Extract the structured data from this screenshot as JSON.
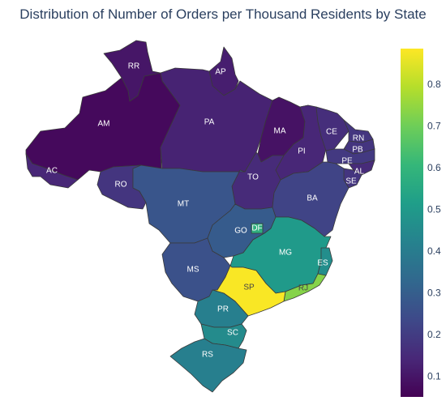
{
  "title": "Distribution of Number of Orders per Thousand Residents by State",
  "chart_data": {
    "type": "choropleth",
    "colorscale": "Viridis",
    "color_range": [
      0.05,
      0.885
    ],
    "colorbar_ticks": [
      "0.1",
      "0.2",
      "0.3",
      "0.4",
      "0.5",
      "0.6",
      "0.7",
      "0.8"
    ],
    "colorbar_tick_values": [
      0.1,
      0.2,
      0.3,
      0.4,
      0.5,
      0.6,
      0.7,
      0.8
    ],
    "states": [
      {
        "code": "AM",
        "value": 0.07
      },
      {
        "code": "RR",
        "value": 0.1
      },
      {
        "code": "AP",
        "value": 0.12
      },
      {
        "code": "PA",
        "value": 0.13
      },
      {
        "code": "AC",
        "value": 0.14
      },
      {
        "code": "RO",
        "value": 0.18
      },
      {
        "code": "MA",
        "value": 0.09
      },
      {
        "code": "PI",
        "value": 0.14
      },
      {
        "code": "CE",
        "value": 0.16
      },
      {
        "code": "RN",
        "value": 0.18
      },
      {
        "code": "PB",
        "value": 0.18
      },
      {
        "code": "PE",
        "value": 0.19
      },
      {
        "code": "AL",
        "value": 0.15
      },
      {
        "code": "SE",
        "value": 0.18
      },
      {
        "code": "TO",
        "value": 0.15
      },
      {
        "code": "BA",
        "value": 0.22
      },
      {
        "code": "MT",
        "value": 0.27
      },
      {
        "code": "MS",
        "value": 0.26
      },
      {
        "code": "GO",
        "value": 0.29
      },
      {
        "code": "DF",
        "value": 0.58
      },
      {
        "code": "MG",
        "value": 0.5
      },
      {
        "code": "ES",
        "value": 0.46
      },
      {
        "code": "RJ",
        "value": 0.73
      },
      {
        "code": "SP",
        "value": 0.88
      },
      {
        "code": "PR",
        "value": 0.41
      },
      {
        "code": "SC",
        "value": 0.45
      },
      {
        "code": "RS",
        "value": 0.41
      }
    ]
  }
}
